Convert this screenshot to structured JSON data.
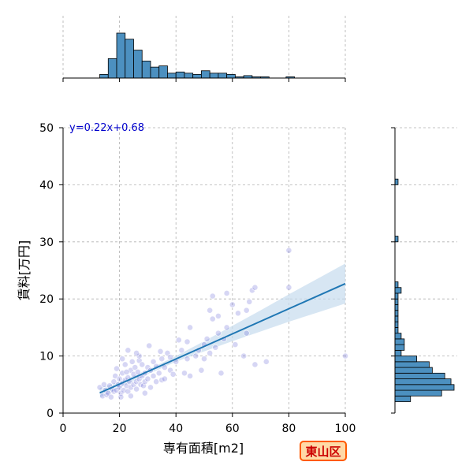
{
  "chart_data": {
    "type": "scatter",
    "xlabel": "専有面積[m2]",
    "ylabel": "賃料[万円]",
    "xlim": [
      0,
      100
    ],
    "ylim": [
      0,
      50
    ],
    "xticks": [
      0,
      20,
      40,
      60,
      80,
      100
    ],
    "yticks": [
      0,
      10,
      20,
      30,
      40,
      50
    ],
    "grid": true,
    "annotation": "y=0.22x+0.68",
    "badge": "東山区",
    "colors": {
      "hist": "#4c90c0",
      "line": "#1f77b4",
      "point": "#6a6ad6",
      "band": "#c6dcee",
      "annotation": "#0000cc",
      "badge_border": "#ff5a00",
      "badge_fill": "#ffd9a6",
      "badge_text": "#cc0000"
    },
    "regression": {
      "slope": 0.22,
      "intercept": 0.68,
      "x_range": [
        13,
        100
      ]
    },
    "confidence_band": [
      {
        "x": 13,
        "low": 2.7,
        "high": 4.4
      },
      {
        "x": 20,
        "low": 4.4,
        "high": 5.5
      },
      {
        "x": 30,
        "low": 6.8,
        "high": 7.6
      },
      {
        "x": 40,
        "low": 9.0,
        "high": 10.0
      },
      {
        "x": 50,
        "low": 10.8,
        "high": 12.6
      },
      {
        "x": 60,
        "low": 12.6,
        "high": 15.3
      },
      {
        "x": 70,
        "low": 14.3,
        "high": 18.0
      },
      {
        "x": 80,
        "low": 16.0,
        "high": 20.8
      },
      {
        "x": 90,
        "low": 17.6,
        "high": 23.5
      },
      {
        "x": 100,
        "low": 19.2,
        "high": 26.2
      }
    ],
    "points": [
      [
        13,
        4.5
      ],
      [
        14,
        3.0
      ],
      [
        14.5,
        5.0
      ],
      [
        15,
        4.0
      ],
      [
        15.5,
        3.2
      ],
      [
        16,
        3.5
      ],
      [
        16.5,
        4.8
      ],
      [
        17,
        2.8
      ],
      [
        17.5,
        4.2
      ],
      [
        18,
        5.5
      ],
      [
        18,
        3.8
      ],
      [
        18.5,
        6.5
      ],
      [
        19,
        4.0
      ],
      [
        19,
        7.8
      ],
      [
        19.5,
        5.0
      ],
      [
        20,
        4.5
      ],
      [
        20,
        6.0
      ],
      [
        20.5,
        3.5
      ],
      [
        21,
        5.2
      ],
      [
        21,
        7.0
      ],
      [
        21.5,
        4.0
      ],
      [
        22,
        8.5
      ],
      [
        22,
        5.8
      ],
      [
        22.5,
        4.8
      ],
      [
        23,
        6.2
      ],
      [
        23,
        3.8
      ],
      [
        23.5,
        5.5
      ],
      [
        24,
        7.5
      ],
      [
        24,
        4.5
      ],
      [
        24.5,
        9.0
      ],
      [
        25,
        5.0
      ],
      [
        25,
        6.8
      ],
      [
        25.5,
        8.0
      ],
      [
        26,
        5.5
      ],
      [
        26,
        4.2
      ],
      [
        26.5,
        7.2
      ],
      [
        27,
        6.0
      ],
      [
        27,
        9.2
      ],
      [
        27.5,
        5.0
      ],
      [
        28,
        8.5
      ],
      [
        28,
        6.5
      ],
      [
        28.5,
        4.8
      ],
      [
        29,
        7.0
      ],
      [
        29,
        5.5
      ],
      [
        30,
        8.0
      ],
      [
        30,
        6.0
      ],
      [
        30.5,
        11.8
      ],
      [
        31,
        7.5
      ],
      [
        32,
        9.0
      ],
      [
        32,
        6.5
      ],
      [
        33,
        8.2
      ],
      [
        34,
        7.0
      ],
      [
        34.5,
        10.8
      ],
      [
        35,
        5.8
      ],
      [
        35,
        9.5
      ],
      [
        36,
        8.0
      ],
      [
        37,
        10.5
      ],
      [
        38,
        7.5
      ],
      [
        38,
        9.8
      ],
      [
        39,
        6.8
      ],
      [
        40,
        9.0
      ],
      [
        41,
        12.8
      ],
      [
        42,
        11.0
      ],
      [
        43,
        7.0
      ],
      [
        44,
        12.5
      ],
      [
        44,
        9.5
      ],
      [
        45,
        6.5
      ],
      [
        45,
        15.0
      ],
      [
        47,
        10.0
      ],
      [
        48,
        11.0
      ],
      [
        49,
        7.5
      ],
      [
        50,
        12.0
      ],
      [
        50,
        9.5
      ],
      [
        51,
        13.0
      ],
      [
        52,
        18.0
      ],
      [
        52,
        10.5
      ],
      [
        53,
        20.5
      ],
      [
        53,
        16.5
      ],
      [
        54,
        11.5
      ],
      [
        55,
        14.0
      ],
      [
        55,
        17.0
      ],
      [
        56,
        7.0
      ],
      [
        57,
        13.0
      ],
      [
        58,
        15.0
      ],
      [
        58,
        21.0
      ],
      [
        60,
        19.0
      ],
      [
        61,
        12.0
      ],
      [
        62,
        17.5
      ],
      [
        64,
        10.0
      ],
      [
        65,
        14.0
      ],
      [
        65,
        18.0
      ],
      [
        66,
        19.5
      ],
      [
        67,
        21.5
      ],
      [
        68,
        22.0
      ],
      [
        68,
        8.5
      ],
      [
        72,
        9.0
      ],
      [
        80,
        22.0
      ],
      [
        80,
        28.5
      ],
      [
        100,
        10.0
      ],
      [
        20.5,
        2.8
      ],
      [
        24,
        3.0
      ],
      [
        21,
        9.5
      ],
      [
        27,
        10.0
      ],
      [
        23,
        11.0
      ],
      [
        31,
        4.5
      ],
      [
        33,
        5.5
      ],
      [
        36,
        6.0
      ],
      [
        29,
        3.5
      ],
      [
        26,
        10.5
      ],
      [
        22.5,
        7.2
      ]
    ],
    "top_histogram": {
      "x_bin_edges": [
        13,
        16,
        19,
        22,
        25,
        28,
        31,
        34,
        37,
        40,
        43,
        46,
        49,
        52,
        55,
        58,
        61,
        64,
        67,
        70,
        73,
        76,
        79,
        82
      ],
      "counts": [
        3,
        16,
        37,
        32,
        23,
        14,
        9,
        10,
        4,
        5,
        4,
        3,
        6,
        4,
        4,
        3,
        1,
        2,
        1,
        1,
        0,
        0,
        1
      ]
    },
    "right_histogram": {
      "y_bin_edges": [
        2,
        3,
        4,
        5,
        6,
        7,
        8,
        9,
        10,
        11,
        12,
        13,
        14,
        15,
        16,
        17,
        18,
        19,
        20,
        21,
        22,
        23,
        24,
        25,
        26,
        27,
        28,
        29,
        30,
        31,
        32,
        33,
        34,
        35,
        36,
        37,
        38,
        39,
        40,
        41
      ],
      "counts": [
        5,
        15,
        19,
        18,
        16,
        12,
        11,
        7,
        2,
        3,
        3,
        2,
        1,
        1,
        1,
        1,
        1,
        1,
        1,
        2,
        1,
        0,
        0,
        0,
        0,
        0,
        0,
        0,
        1,
        0,
        0,
        0,
        0,
        0,
        0,
        0,
        0,
        0,
        1
      ]
    }
  }
}
